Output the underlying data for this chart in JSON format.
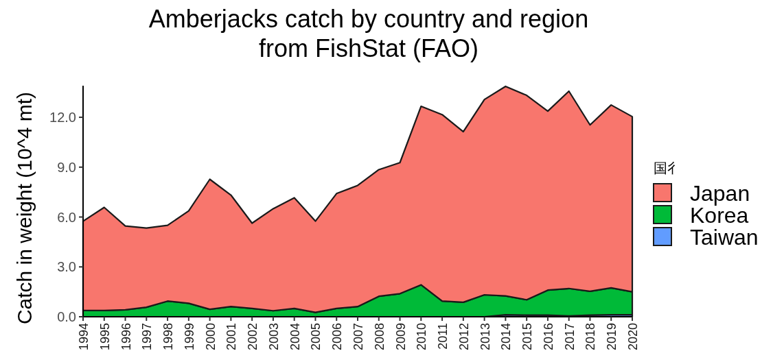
{
  "chart_data": {
    "type": "area",
    "stacked": true,
    "title": "Amberjacks catch by country and region\nfrom FishStat (FAO)",
    "ylabel": "Catch in weight (10^4 mt)",
    "legend_title": "国彳",
    "legend": "right",
    "categories": [
      "1994",
      "1995",
      "1996",
      "1997",
      "1998",
      "1999",
      "2000",
      "2001",
      "2002",
      "2003",
      "2004",
      "2005",
      "2006",
      "2007",
      "2008",
      "2009",
      "2010",
      "2011",
      "2012",
      "2013",
      "2014",
      "2015",
      "2016",
      "2017",
      "2018",
      "2019",
      "2020"
    ],
    "ylim": [
      0,
      13.9
    ],
    "yticks": [
      {
        "value": 0,
        "label": "0.0"
      },
      {
        "value": 3,
        "label": "3.0"
      },
      {
        "value": 6,
        "label": "6.0"
      },
      {
        "value": 9,
        "label": "9.0"
      },
      {
        "value": 12,
        "label": "12.0"
      }
    ],
    "series": [
      {
        "name": "Taiwan",
        "color": "#619cff",
        "values": [
          0,
          0,
          0,
          0,
          0,
          0,
          0,
          0,
          0,
          0,
          0,
          0,
          0,
          0,
          0,
          0,
          0,
          0,
          0,
          0,
          0.12,
          0.1,
          0.1,
          0.05,
          0.1,
          0.12,
          0.12
        ]
      },
      {
        "name": "Korea",
        "color": "#00ba38",
        "values": [
          0.38,
          0.38,
          0.42,
          0.57,
          0.94,
          0.81,
          0.45,
          0.61,
          0.5,
          0.36,
          0.5,
          0.26,
          0.5,
          0.61,
          1.23,
          1.39,
          1.92,
          0.94,
          0.87,
          1.32,
          1.13,
          0.92,
          1.5,
          1.65,
          1.43,
          1.62,
          1.38
        ]
      },
      {
        "name": "Japan",
        "color": "#f8766d",
        "values": [
          5.37,
          6.2,
          5.04,
          4.77,
          4.56,
          5.56,
          7.82,
          6.71,
          5.13,
          6.14,
          6.66,
          5.49,
          6.91,
          7.29,
          7.62,
          7.88,
          10.74,
          11.22,
          10.26,
          11.75,
          12.61,
          12.3,
          10.77,
          11.87,
          10.01,
          11.0,
          10.54
        ]
      }
    ]
  }
}
